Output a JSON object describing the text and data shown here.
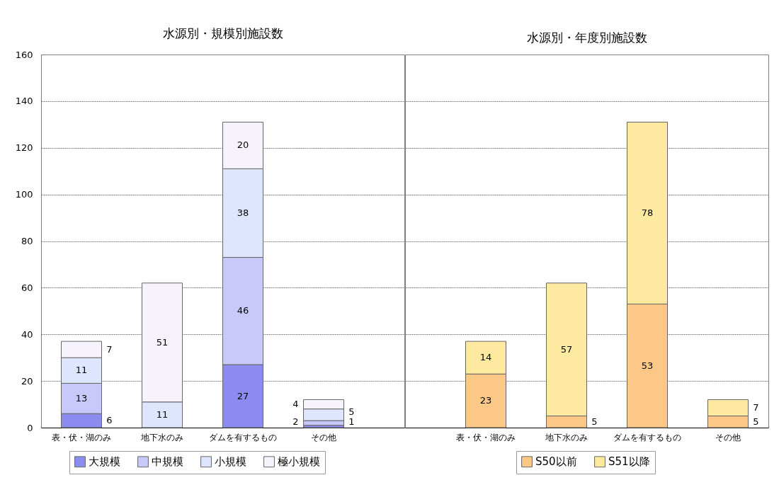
{
  "chart_data": [
    {
      "type": "bar",
      "title": "水源別・規模別施設数",
      "categories": [
        "表・伏・湖のみ",
        "地下水のみ",
        "ダムを有するもの",
        "その他"
      ],
      "stacked": true,
      "series": [
        {
          "name": "大規模",
          "color": "#8c8cf0",
          "values": [
            6,
            null,
            27,
            1
          ]
        },
        {
          "name": "中規模",
          "color": "#c8c8fa",
          "values": [
            13,
            null,
            46,
            2
          ]
        },
        {
          "name": "小規模",
          "color": "#dde6fc",
          "values": [
            11,
            11,
            38,
            5
          ]
        },
        {
          "name": "極小規模",
          "color": "#f7f3fd",
          "values": [
            7,
            51,
            20,
            4
          ]
        }
      ],
      "ylim": [
        0,
        160
      ],
      "yticks": [
        0,
        20,
        40,
        60,
        80,
        100,
        120,
        140,
        160
      ],
      "grid": "y",
      "legend": "bottom",
      "data_labels": true
    },
    {
      "type": "bar",
      "title": "水源別・年度別施設数",
      "categories": [
        "表・伏・湖のみ",
        "地下水のみ",
        "ダムを有するもの",
        "その他"
      ],
      "stacked": true,
      "series": [
        {
          "name": "S50以前",
          "color": "#fcc888",
          "values": [
            23,
            5,
            53,
            5
          ]
        },
        {
          "name": "S51以降",
          "color": "#fde9a0",
          "values": [
            14,
            57,
            78,
            7
          ]
        }
      ],
      "ylim": [
        0,
        160
      ],
      "yticks": [
        0,
        20,
        40,
        60,
        80,
        100,
        120,
        140,
        160
      ],
      "tick_labels": "x",
      "grid": "y",
      "legend": "bottom",
      "data_labels": true
    }
  ]
}
